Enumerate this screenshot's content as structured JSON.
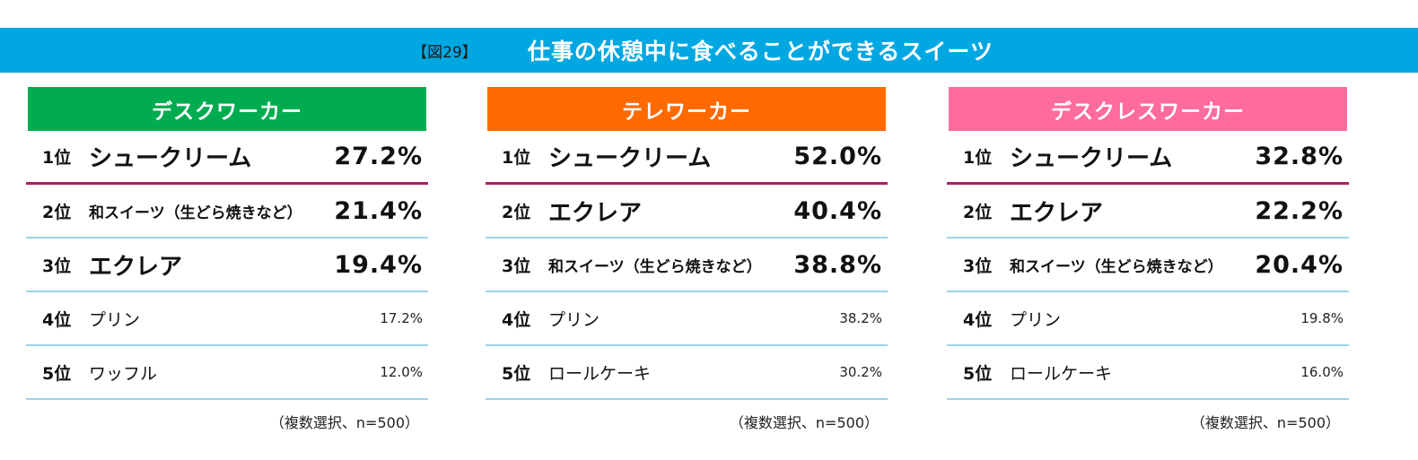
{
  "header": {
    "figure_label": "【図29】",
    "title": "仕事の休憩中に食べることができるスイーツ",
    "color": "#00a7e1"
  },
  "rank_suffix": "位",
  "panels": [
    {
      "title": "デスクワーカー",
      "color": "#00ac4f",
      "rows": [
        {
          "rank": "1",
          "item": "シュークリーム",
          "value": "27.2%"
        },
        {
          "rank": "2",
          "item": "和スイーツ（生どら焼きなど）",
          "value": "21.4%"
        },
        {
          "rank": "3",
          "item": "エクレア",
          "value": "19.4%"
        },
        {
          "rank": "4",
          "item": "プリン",
          "value": "17.2%"
        },
        {
          "rank": "5",
          "item": "ワッフル",
          "value": "12.0%"
        }
      ],
      "note": "（複数選択、n=500）"
    },
    {
      "title": "テレワーカー",
      "color": "#ff6a00",
      "rows": [
        {
          "rank": "1",
          "item": "シュークリーム",
          "value": "52.0%"
        },
        {
          "rank": "2",
          "item": "エクレア",
          "value": "40.4%"
        },
        {
          "rank": "3",
          "item": "和スイーツ（生どら焼きなど）",
          "value": "38.8%"
        },
        {
          "rank": "4",
          "item": "プリン",
          "value": "38.2%"
        },
        {
          "rank": "5",
          "item": "ロールケーキ",
          "value": "30.2%"
        }
      ],
      "note": "（複数選択、n=500）"
    },
    {
      "title": "デスクレスワーカー",
      "color": "#ff6b9c",
      "rows": [
        {
          "rank": "1",
          "item": "シュークリーム",
          "value": "32.8%"
        },
        {
          "rank": "2",
          "item": "エクレア",
          "value": "22.2%"
        },
        {
          "rank": "3",
          "item": "和スイーツ（生どら焼きなど）",
          "value": "20.4%"
        },
        {
          "rank": "4",
          "item": "プリン",
          "value": "19.8%"
        },
        {
          "rank": "5",
          "item": "ロールケーキ",
          "value": "16.0%"
        }
      ],
      "note": "（複数選択、n=500）"
    }
  ]
}
